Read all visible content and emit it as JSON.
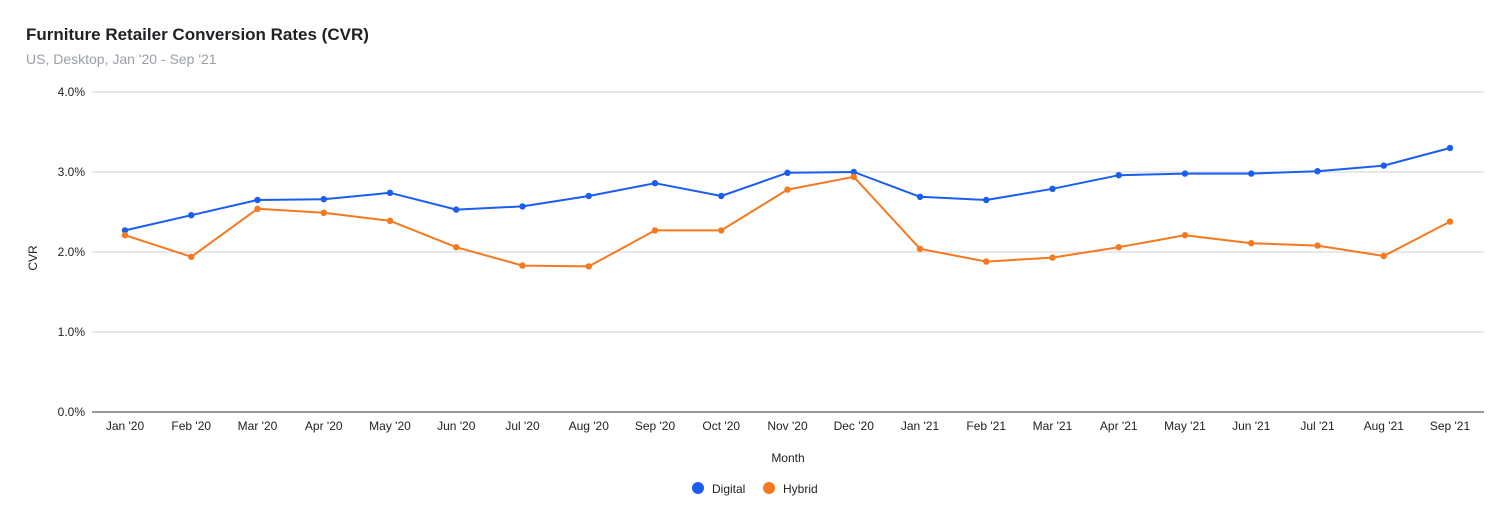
{
  "chart_data": {
    "type": "line",
    "title": "Furniture Retailer Conversion Rates (CVR)",
    "subtitle": "US, Desktop, Jan '20 - Sep '21",
    "xlabel": "Month",
    "ylabel": "CVR",
    "ylim": [
      0,
      4.0
    ],
    "yticks": [
      "0.0%",
      "1.0%",
      "2.0%",
      "3.0%",
      "4.0%"
    ],
    "ytick_values": [
      0,
      1,
      2,
      3,
      4
    ],
    "grid": true,
    "legend_position": "bottom",
    "categories": [
      "Jan '20",
      "Feb '20",
      "Mar '20",
      "Apr '20",
      "May '20",
      "Jun '20",
      "Jul '20",
      "Aug '20",
      "Sep '20",
      "Oct '20",
      "Nov '20",
      "Dec '20",
      "Jan '21",
      "Feb '21",
      "Mar '21",
      "Apr '21",
      "May '21",
      "Jun '21",
      "Jul '21",
      "Aug '21",
      "Sep '21"
    ],
    "series": [
      {
        "name": "Digital",
        "color": "#1a5ef1",
        "values": [
          2.27,
          2.46,
          2.65,
          2.66,
          2.74,
          2.53,
          2.57,
          2.7,
          2.86,
          2.7,
          2.99,
          3.0,
          2.69,
          2.65,
          2.79,
          2.96,
          2.98,
          2.98,
          3.01,
          3.08,
          3.3
        ]
      },
      {
        "name": "Hybrid",
        "color": "#f5791f",
        "values": [
          2.21,
          1.94,
          2.54,
          2.49,
          2.39,
          2.06,
          1.83,
          1.82,
          2.27,
          2.27,
          2.78,
          2.94,
          2.04,
          1.88,
          1.93,
          2.06,
          2.21,
          2.11,
          2.08,
          1.95,
          2.38
        ]
      }
    ]
  }
}
